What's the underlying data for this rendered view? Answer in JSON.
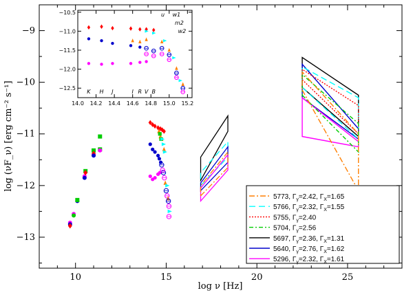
{
  "chart_data": [
    {
      "type": "scatter",
      "xlabel": "log ν [Hz]",
      "ylabel": "log (νF_ν) [erg cm⁻² s⁻¹]",
      "xlim": [
        8,
        28
      ],
      "ylim": [
        -13.6,
        -8.5
      ],
      "xticks": [
        10,
        15,
        20,
        25
      ],
      "yticks": [
        -13,
        -12,
        -11,
        -10,
        -9
      ],
      "colors": {
        "5773": "#ff7f00",
        "5766": "#00ffff",
        "5755": "#ff0000",
        "5704": "#00cc00",
        "5697": "#000000",
        "5640": "#0000cc",
        "5296": "#ff00ff"
      },
      "legend": {
        "position": "bottom-right",
        "entries": [
          {
            "epoch": "5773",
            "g": "Γ",
            "gs": "γ",
            "gv": "=2.42, ",
            "x": "Γ",
            "xs": "X",
            "xv": "=1.65",
            "color": "#ff7f00",
            "dash": "8,3,2,3"
          },
          {
            "epoch": "5766",
            "g": "Γ",
            "gs": "γ",
            "gv": "=2.32, ",
            "x": "Γ",
            "xs": "X",
            "xv": "=1.55",
            "color": "#00ffff",
            "dash": "9,5"
          },
          {
            "epoch": "5755",
            "g": "Γ",
            "gs": "γ",
            "gv": "=2.40",
            "x": "",
            "xs": "",
            "xv": "",
            "color": "#ff0000",
            "dash": "2,2"
          },
          {
            "epoch": "5704",
            "g": "Γ",
            "gs": "γ",
            "gv": "=2.56",
            "x": "",
            "xs": "",
            "xv": "",
            "color": "#00cc00",
            "dash": "6,3,2,3"
          },
          {
            "epoch": "5697",
            "g": "Γ",
            "gs": "γ",
            "gv": "=2.36, ",
            "x": "Γ",
            "xs": "X",
            "xv": "=1.31",
            "color": "#000000",
            "dash": ""
          },
          {
            "epoch": "5640",
            "g": "Γ",
            "gs": "γ",
            "gv": "=2.76, ",
            "x": "Γ",
            "xs": "X",
            "xv": "=1.62",
            "color": "#0000cc",
            "dash": ""
          },
          {
            "epoch": "5296",
            "g": "Γ",
            "gs": "γ",
            "gv": "=2.32, ",
            "x": "Γ",
            "xs": "X",
            "xv": "=1.61",
            "color": "#ff00ff",
            "dash": ""
          }
        ]
      },
      "radio_points": [
        {
          "x": 9.7,
          "y": -12.72,
          "c": "5296",
          "m": "o"
        },
        {
          "x": 9.7,
          "y": -12.75,
          "c": "5640",
          "m": "o"
        },
        {
          "x": 9.7,
          "y": -12.78,
          "c": "5755",
          "m": "d"
        },
        {
          "x": 9.9,
          "y": -12.55,
          "c": "5296",
          "m": "o"
        },
        {
          "x": 9.9,
          "y": -12.58,
          "c": "5704",
          "m": "o"
        },
        {
          "x": 10.1,
          "y": -12.3,
          "c": "5640",
          "m": "o"
        },
        {
          "x": 10.1,
          "y": -12.28,
          "c": "5704",
          "m": "s"
        },
        {
          "x": 10.5,
          "y": -11.82,
          "c": "5296",
          "m": "o"
        },
        {
          "x": 10.5,
          "y": -11.85,
          "c": "5640",
          "m": "o"
        },
        {
          "x": 10.55,
          "y": -11.72,
          "c": "5704",
          "m": "s"
        },
        {
          "x": 10.55,
          "y": -11.75,
          "c": "5755",
          "m": "d"
        },
        {
          "x": 11.0,
          "y": -11.4,
          "c": "5296",
          "m": "o"
        },
        {
          "x": 11.0,
          "y": -11.32,
          "c": "5704",
          "m": "s"
        },
        {
          "x": 11.0,
          "y": -11.38,
          "c": "5755",
          "m": "d"
        },
        {
          "x": 11.0,
          "y": -11.42,
          "c": "5640",
          "m": "o"
        },
        {
          "x": 11.35,
          "y": -11.3,
          "c": "5704",
          "m": "s"
        },
        {
          "x": 11.35,
          "y": -11.05,
          "c": "5704",
          "m": "s"
        },
        {
          "x": 11.35,
          "y": -11.32,
          "c": "5296",
          "m": "o"
        }
      ],
      "opt_points": [
        {
          "x": 14.12,
          "y": -10.78,
          "c": "5755",
          "m": "d"
        },
        {
          "x": 14.25,
          "y": -10.82,
          "c": "5755",
          "m": "d"
        },
        {
          "x": 14.38,
          "y": -10.85,
          "c": "5755",
          "m": "d"
        },
        {
          "x": 14.55,
          "y": -10.88,
          "c": "5755",
          "m": "d"
        },
        {
          "x": 14.68,
          "y": -10.9,
          "c": "5755",
          "m": "d"
        },
        {
          "x": 14.78,
          "y": -10.92,
          "c": "5755",
          "m": "d"
        },
        {
          "x": 14.88,
          "y": -10.95,
          "c": "5755",
          "m": "d"
        },
        {
          "x": 14.12,
          "y": -11.2,
          "c": "5640",
          "m": "o"
        },
        {
          "x": 14.25,
          "y": -11.3,
          "c": "5640",
          "m": "o"
        },
        {
          "x": 14.38,
          "y": -11.35,
          "c": "5640",
          "m": "o"
        },
        {
          "x": 14.55,
          "y": -11.42,
          "c": "5640",
          "m": "o"
        },
        {
          "x": 14.62,
          "y": -11.48,
          "c": "5640",
          "m": "o"
        },
        {
          "x": 14.7,
          "y": -11.55,
          "c": "5640",
          "m": "o"
        },
        {
          "x": 14.12,
          "y": -11.82,
          "c": "5296",
          "m": "o"
        },
        {
          "x": 14.25,
          "y": -11.88,
          "c": "5296",
          "m": "o"
        },
        {
          "x": 14.38,
          "y": -11.85,
          "c": "5296",
          "m": "o"
        },
        {
          "x": 14.55,
          "y": -11.78,
          "c": "5296",
          "m": "o"
        },
        {
          "x": 14.65,
          "y": -11.75,
          "c": "5296",
          "m": "o"
        },
        {
          "x": 14.6,
          "y": -10.95,
          "c": "5773",
          "m": "t"
        },
        {
          "x": 14.68,
          "y": -11.05,
          "c": "5773",
          "m": "t"
        },
        {
          "x": 14.75,
          "y": -11.1,
          "c": "5773",
          "m": "t"
        },
        {
          "x": 14.65,
          "y": -11.0,
          "c": "5704",
          "m": "s"
        },
        {
          "x": 14.72,
          "y": -11.1,
          "c": "5704",
          "m": "s"
        },
        {
          "x": 14.78,
          "y": -11.1,
          "c": "5766",
          "m": "tr"
        },
        {
          "x": 14.85,
          "y": -11.2,
          "c": "5766",
          "m": "tr"
        },
        {
          "x": 14.88,
          "y": -11.3,
          "c": "5773",
          "m": "t"
        },
        {
          "x": 14.92,
          "y": -11.35,
          "c": "5766",
          "m": "tr"
        },
        {
          "x": 14.75,
          "y": -11.6,
          "c": "5640",
          "m": "oc"
        },
        {
          "x": 14.85,
          "y": -11.75,
          "c": "5640",
          "m": "oc"
        },
        {
          "x": 14.8,
          "y": -11.7,
          "c": "5296",
          "m": "oc"
        },
        {
          "x": 14.9,
          "y": -11.85,
          "c": "5296",
          "m": "oc"
        },
        {
          "x": 14.95,
          "y": -11.95,
          "c": "5773",
          "m": "t"
        },
        {
          "x": 15.05,
          "y": -12.0,
          "c": "5766",
          "m": "tr"
        },
        {
          "x": 15.0,
          "y": -12.1,
          "c": "5640",
          "m": "oc"
        },
        {
          "x": 15.05,
          "y": -12.2,
          "c": "5296",
          "m": "oc"
        },
        {
          "x": 15.1,
          "y": -12.25,
          "c": "5773",
          "m": "t"
        },
        {
          "x": 15.12,
          "y": -12.3,
          "c": "5640",
          "m": "oc"
        },
        {
          "x": 15.15,
          "y": -12.4,
          "c": "5296",
          "m": "oc"
        },
        {
          "x": 15.18,
          "y": -12.5,
          "c": "5766",
          "m": "tr"
        },
        {
          "x": 15.15,
          "y": -12.6,
          "c": "5296",
          "m": "oc"
        }
      ],
      "xray_uvot_bands": [
        {
          "epoch": "5697",
          "color": "#000000",
          "dash": "",
          "lo": [
            -11.9,
            -10.95
          ],
          "hi": [
            -11.45,
            -10.65
          ]
        },
        {
          "epoch": "5766",
          "color": "#00ffff",
          "dash": "9,5",
          "lo": [
            -12.0,
            -11.45
          ],
          "hi": [
            -11.75,
            -11.15
          ]
        },
        {
          "epoch": "5640",
          "color": "#0000cc",
          "dash": "",
          "lo": [
            -12.1,
            -11.55
          ],
          "hi": [
            -11.95,
            -11.25
          ]
        },
        {
          "epoch": "5296",
          "color": "#ff00ff",
          "dash": "",
          "lo": [
            -12.3,
            -11.7
          ],
          "hi": [
            -12.05,
            -11.4
          ]
        },
        {
          "epoch": "5773",
          "color": "#ff7f00",
          "dash": "8,3,2,3",
          "lo": [
            -12.2,
            -11.65
          ],
          "hi": [
            -12.0,
            -11.35
          ]
        }
      ],
      "xrange_lo": 16.9,
      "xrange_hi": 18.4,
      "gamma_bands": [
        {
          "epoch": "5697",
          "color": "#000000",
          "dash": "",
          "lo": [
            -10.1,
            -11.05
          ],
          "hi": [
            -9.52,
            -10.25
          ]
        },
        {
          "epoch": "5640",
          "color": "#0000cc",
          "dash": "",
          "lo": [
            -10.3,
            -11.1
          ],
          "hi": [
            -9.65,
            -10.9
          ]
        },
        {
          "epoch": "5296",
          "color": "#ff00ff",
          "dash": "",
          "lo": [
            -11.05,
            -11.25
          ],
          "hi": [
            -10.3,
            -11.15
          ]
        },
        {
          "epoch": "5766",
          "color": "#00ffff",
          "dash": "9,5",
          "lo": [
            -10.1,
            -11.1
          ],
          "hi": [
            -9.7,
            -10.3
          ]
        },
        {
          "epoch": "5755",
          "color": "#ff0000",
          "dash": "2,2",
          "lo": [
            -9.95,
            -11.0
          ],
          "hi": [
            -9.75,
            -10.45
          ]
        },
        {
          "epoch": "5704",
          "color": "#00cc00",
          "dash": "6,3,2,3",
          "lo": [
            -10.25,
            -11.35
          ],
          "hi": [
            -9.85,
            -10.8
          ]
        },
        {
          "epoch": "5773",
          "color": "#ff7f00",
          "dash": "8,3,2,3",
          "lo": [
            -10.15,
            -12.1
          ],
          "hi": [
            -9.8,
            -11.0
          ]
        }
      ],
      "grange_lo": 22.5,
      "grange_hi": 25.6
    },
    {
      "type": "scatter",
      "position": "inset top-left",
      "xlim": [
        14.0,
        15.25
      ],
      "ylim": [
        -12.75,
        -10.45
      ],
      "xticks": [
        "14.0",
        "14.2",
        "14.4",
        "14.6",
        "14.8",
        "15.0",
        "15.2"
      ],
      "yticks": [
        "-10.5",
        "-11.0",
        "-11.5",
        "-12.0",
        "-12.5"
      ],
      "bottom_bands": [
        "K",
        "H",
        "J",
        "I",
        "R",
        "V",
        "B"
      ],
      "top_bands": [
        "u",
        "w1",
        "m2",
        "w2"
      ],
      "points": [
        {
          "x": 14.12,
          "y": -10.9,
          "c": "5755",
          "m": "d"
        },
        {
          "x": 14.26,
          "y": -10.88,
          "c": "5755",
          "m": "d"
        },
        {
          "x": 14.38,
          "y": -10.92,
          "c": "5755",
          "m": "d"
        },
        {
          "x": 14.58,
          "y": -10.93,
          "c": "5755",
          "m": "d"
        },
        {
          "x": 14.68,
          "y": -10.95,
          "c": "5755",
          "m": "d"
        },
        {
          "x": 14.75,
          "y": -10.95,
          "c": "5755",
          "m": "d"
        },
        {
          "x": 14.83,
          "y": -10.97,
          "c": "5755",
          "m": "d"
        },
        {
          "x": 14.12,
          "y": -11.2,
          "c": "5640",
          "m": "o"
        },
        {
          "x": 14.26,
          "y": -11.25,
          "c": "5640",
          "m": "o"
        },
        {
          "x": 14.38,
          "y": -11.32,
          "c": "5640",
          "m": "o"
        },
        {
          "x": 14.58,
          "y": -11.38,
          "c": "5640",
          "m": "o"
        },
        {
          "x": 14.68,
          "y": -11.42,
          "c": "5640",
          "m": "o"
        },
        {
          "x": 14.12,
          "y": -11.85,
          "c": "5296",
          "m": "o"
        },
        {
          "x": 14.26,
          "y": -11.87,
          "c": "5296",
          "m": "o"
        },
        {
          "x": 14.38,
          "y": -11.85,
          "c": "5296",
          "m": "o"
        },
        {
          "x": 14.58,
          "y": -11.85,
          "c": "5296",
          "m": "o"
        },
        {
          "x": 14.68,
          "y": -11.82,
          "c": "5296",
          "m": "o"
        },
        {
          "x": 14.75,
          "y": -11.8,
          "c": "5296",
          "m": "o"
        },
        {
          "x": 14.6,
          "y": -11.25,
          "c": "5773",
          "m": "t"
        },
        {
          "x": 14.68,
          "y": -11.28,
          "c": "5773",
          "m": "t"
        },
        {
          "x": 14.75,
          "y": -11.22,
          "c": "5773",
          "m": "t"
        },
        {
          "x": 14.75,
          "y": -11.0,
          "c": "5766",
          "m": "tr"
        },
        {
          "x": 14.83,
          "y": -11.05,
          "c": "5766",
          "m": "tr"
        },
        {
          "x": 14.75,
          "y": -11.45,
          "c": "5640",
          "m": "oc"
        },
        {
          "x": 14.83,
          "y": -11.52,
          "c": "5640",
          "m": "oc"
        },
        {
          "x": 14.75,
          "y": -11.6,
          "c": "5296",
          "m": "oc"
        },
        {
          "x": 14.83,
          "y": -11.65,
          "c": "5296",
          "m": "oc"
        },
        {
          "x": 14.92,
          "y": -11.28,
          "c": "5773",
          "m": "t"
        },
        {
          "x": 14.92,
          "y": -11.45,
          "c": "5640",
          "m": "oc"
        },
        {
          "x": 14.92,
          "y": -11.6,
          "c": "5296",
          "m": "oc"
        },
        {
          "x": 14.95,
          "y": -11.25,
          "c": "5766",
          "m": "tr"
        },
        {
          "x": 15.0,
          "y": -11.5,
          "c": "5773",
          "m": "t"
        },
        {
          "x": 15.0,
          "y": -11.62,
          "c": "5640",
          "m": "oc"
        },
        {
          "x": 15.0,
          "y": -11.75,
          "c": "5296",
          "m": "oc"
        },
        {
          "x": 15.05,
          "y": -11.7,
          "c": "5766",
          "m": "tr"
        },
        {
          "x": 15.08,
          "y": -11.98,
          "c": "5773",
          "m": "t"
        },
        {
          "x": 15.08,
          "y": -12.1,
          "c": "5640",
          "m": "oc"
        },
        {
          "x": 15.08,
          "y": -12.22,
          "c": "5296",
          "m": "oc"
        },
        {
          "x": 15.12,
          "y": -12.3,
          "c": "5766",
          "m": "tr"
        },
        {
          "x": 15.15,
          "y": -12.4,
          "c": "5773",
          "m": "t"
        },
        {
          "x": 15.15,
          "y": -12.5,
          "c": "5640",
          "m": "oc"
        },
        {
          "x": 15.15,
          "y": -12.6,
          "c": "5296",
          "m": "oc"
        }
      ]
    }
  ]
}
